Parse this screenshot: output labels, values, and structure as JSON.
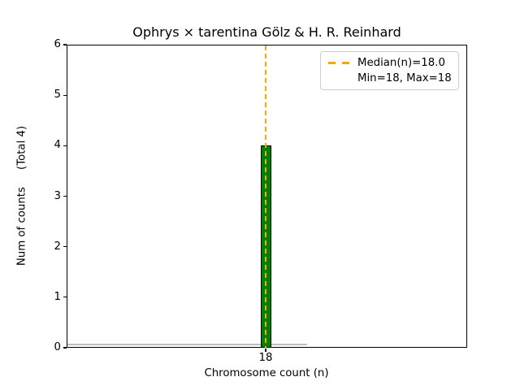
{
  "chart_data": {
    "type": "bar",
    "title": "Ophrys × tarentina Gölz & H. R. Reinhard",
    "xlabel": "Chromosome count (n)",
    "ylabel": "Num of counts     (Total 4)",
    "categories": [
      "18"
    ],
    "values": [
      4
    ],
    "total_counts": 4,
    "ylim": [
      0,
      6
    ],
    "yticks": [
      0,
      1,
      2,
      3,
      4,
      5,
      6
    ],
    "median_n": "18.0",
    "min_n": 18,
    "max_n": 18,
    "grid": false,
    "legend": {
      "position": "upper right",
      "entries": [
        {
          "label": "Median(n)=18.0",
          "handle": "orange-dashed-line"
        },
        {
          "label": "Min=18, Max=18",
          "handle": "none"
        }
      ]
    },
    "colors": {
      "bar_fill": "#008000",
      "bar_edge": "#000000",
      "median_line": "#FFA500",
      "zero_baseline": "#bfbfbf",
      "legend_border": "#cccccc",
      "text": "#000000",
      "background": "#ffffff"
    }
  }
}
